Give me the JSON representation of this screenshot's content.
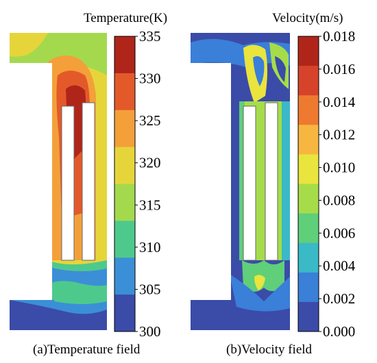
{
  "left": {
    "title": "Temperature(K)",
    "caption": "(a)Temperature field",
    "ticks": [
      "335",
      "330",
      "325",
      "320",
      "315",
      "310",
      "305",
      "300"
    ],
    "colormap": [
      "#b0251a",
      "#e4592a",
      "#f3a03a",
      "#e6d53a",
      "#a4d94e",
      "#4ec98c",
      "#3b8fd6",
      "#3b4ba8"
    ]
  },
  "right": {
    "title": "Velocity(m/s)",
    "caption": "(b)Velocity field",
    "ticks": [
      "0.018",
      "0.016",
      "0.014",
      "0.012",
      "0.010",
      "0.008",
      "0.006",
      "0.004",
      "0.002",
      "0.000"
    ],
    "colormap": [
      "#b0251a",
      "#d6432a",
      "#ee7a30",
      "#f6b640",
      "#e9e43e",
      "#a6dc4a",
      "#5fcf7a",
      "#3ab9c6",
      "#3a7fd8",
      "#3b4ba8"
    ]
  }
}
